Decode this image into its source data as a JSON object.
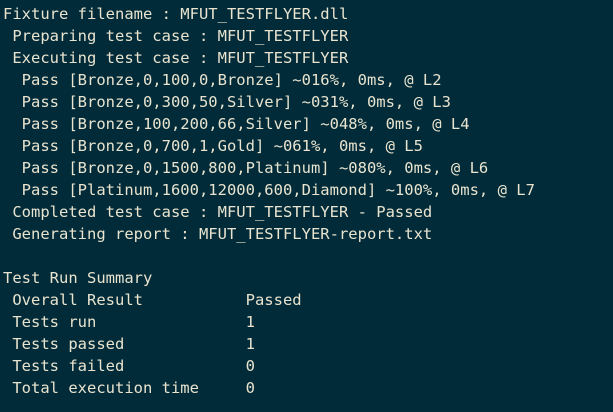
{
  "console": {
    "lines": [
      "Fixture filename : MFUT_TESTFLYER.dll",
      " Preparing test case : MFUT_TESTFLYER",
      " Executing test case : MFUT_TESTFLYER",
      "  Pass [Bronze,0,100,0,Bronze] ~016%, 0ms, @ L2",
      "  Pass [Bronze,0,300,50,Silver] ~031%, 0ms, @ L3",
      "  Pass [Bronze,100,200,66,Silver] ~048%, 0ms, @ L4",
      "  Pass [Bronze,0,700,1,Gold] ~061%, 0ms, @ L5",
      "  Pass [Bronze,0,1500,800,Platinum] ~080%, 0ms, @ L6",
      "  Pass [Platinum,1600,12000,600,Diamond] ~100%, 0ms, @ L7",
      " Completed test case : MFUT_TESTFLYER - Passed",
      " Generating report : MFUT_TESTFLYER-report.txt",
      "",
      "Test Run Summary",
      " Overall Result           Passed",
      " Tests run                1",
      " Tests passed             1",
      " Tests failed             0",
      " Total execution time     0"
    ]
  },
  "colors": {
    "background": "#012b38",
    "text": "#e9e4d0"
  }
}
